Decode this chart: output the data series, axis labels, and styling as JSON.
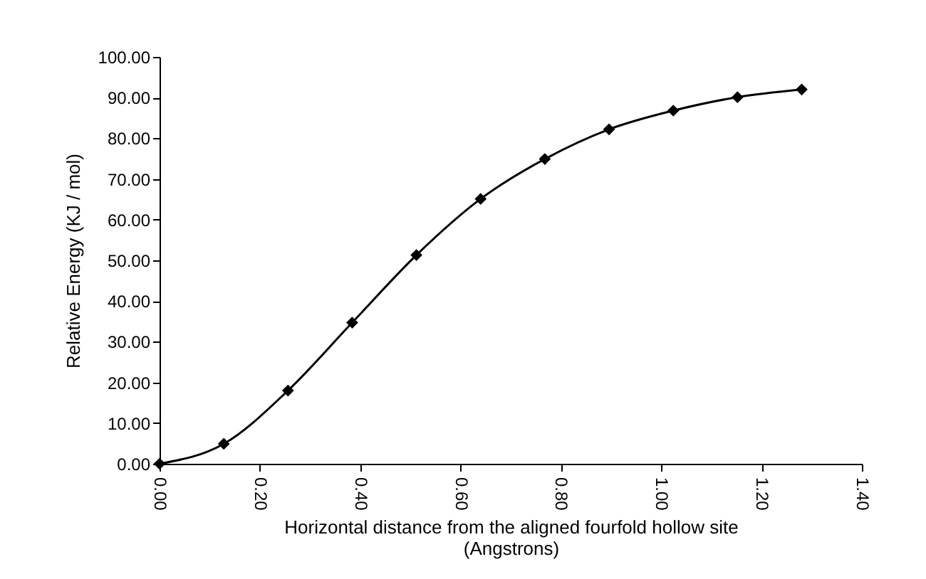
{
  "chart_data": {
    "type": "line",
    "xlabel": "Horizontal distance from the aligned fourfold hollow site\n(Angstrons)",
    "ylabel": "Relative Energy (KJ / mol)",
    "x": [
      0,
      0.128,
      0.256,
      0.384,
      0.512,
      0.64,
      0.768,
      0.896,
      1.024,
      1.152,
      1.28
    ],
    "series": [
      {
        "color": "#000000",
        "values": [
          0,
          4.9,
          18.0,
          34.7,
          51.3,
          65.1,
          74.9,
          82.2,
          86.8,
          90.1,
          92.0
        ]
      }
    ],
    "xlim": [
      0,
      1.4
    ],
    "xticks": [
      {
        "value": 0,
        "label": "0.00"
      },
      {
        "value": 0.2,
        "label": "0.20"
      },
      {
        "value": 0.4,
        "label": "0.40"
      },
      {
        "value": 0.6,
        "label": "0.60"
      },
      {
        "value": 0.8,
        "label": "0.80"
      },
      {
        "value": 1,
        "label": "1.00"
      },
      {
        "value": 1.2,
        "label": "1.20"
      },
      {
        "value": 1.4,
        "label": "1.40"
      }
    ],
    "ylim": [
      0,
      100
    ],
    "yticks": [
      {
        "value": 0,
        "label": "0.00"
      },
      {
        "value": 10,
        "label": "10.00"
      },
      {
        "value": 20,
        "label": "20.00"
      },
      {
        "value": 30,
        "label": "30.00"
      },
      {
        "value": 40,
        "label": "40.00"
      },
      {
        "value": 50,
        "label": "50.00"
      },
      {
        "value": 60,
        "label": "60.00"
      },
      {
        "value": 70,
        "label": "70.00"
      },
      {
        "value": 80,
        "label": "80.00"
      },
      {
        "value": 90,
        "label": "90.00"
      },
      {
        "value": 100,
        "label": "100.00"
      }
    ],
    "grid": false,
    "marker": "diamond",
    "line_style": "solid"
  }
}
